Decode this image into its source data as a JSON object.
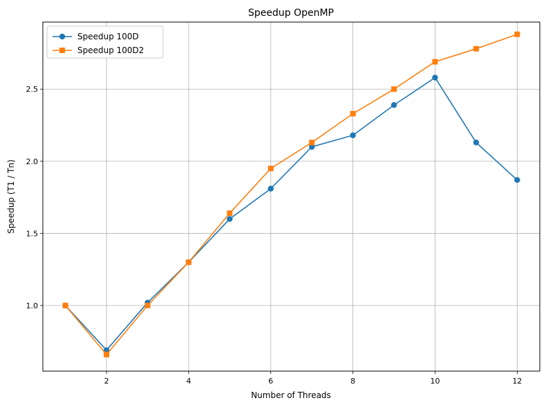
{
  "chart_data": {
    "type": "line",
    "title": "Speedup OpenMP",
    "xlabel": "Number of Threads",
    "ylabel": "Speedup (T1 / Tn)",
    "xlim": [
      0.45,
      12.55
    ],
    "ylim": [
      0.545,
      2.965
    ],
    "xticks": [
      2,
      4,
      6,
      8,
      10,
      12
    ],
    "xtick_labels": [
      "2",
      "4",
      "6",
      "8",
      "10",
      "12"
    ],
    "yticks": [
      1.0,
      1.5,
      2.0,
      2.5
    ],
    "ytick_labels": [
      "1.0",
      "1.5",
      "2.0",
      "2.5"
    ],
    "grid": true,
    "legend_position": "top-left",
    "x": [
      1,
      2,
      3,
      4,
      5,
      6,
      7,
      8,
      9,
      10,
      11,
      12
    ],
    "series": [
      {
        "name": "Speedup 100D",
        "marker": "circle",
        "color": "#1f77b4",
        "values": [
          1.0,
          0.69,
          1.02,
          1.3,
          1.6,
          1.81,
          2.1,
          2.18,
          2.39,
          2.58,
          2.13,
          1.87
        ]
      },
      {
        "name": "Speedup 100D2",
        "marker": "square",
        "color": "#ff7f0e",
        "values": [
          1.0,
          0.66,
          1.0,
          1.3,
          1.64,
          1.95,
          2.13,
          2.33,
          2.5,
          2.69,
          2.78,
          2.88
        ]
      }
    ]
  }
}
